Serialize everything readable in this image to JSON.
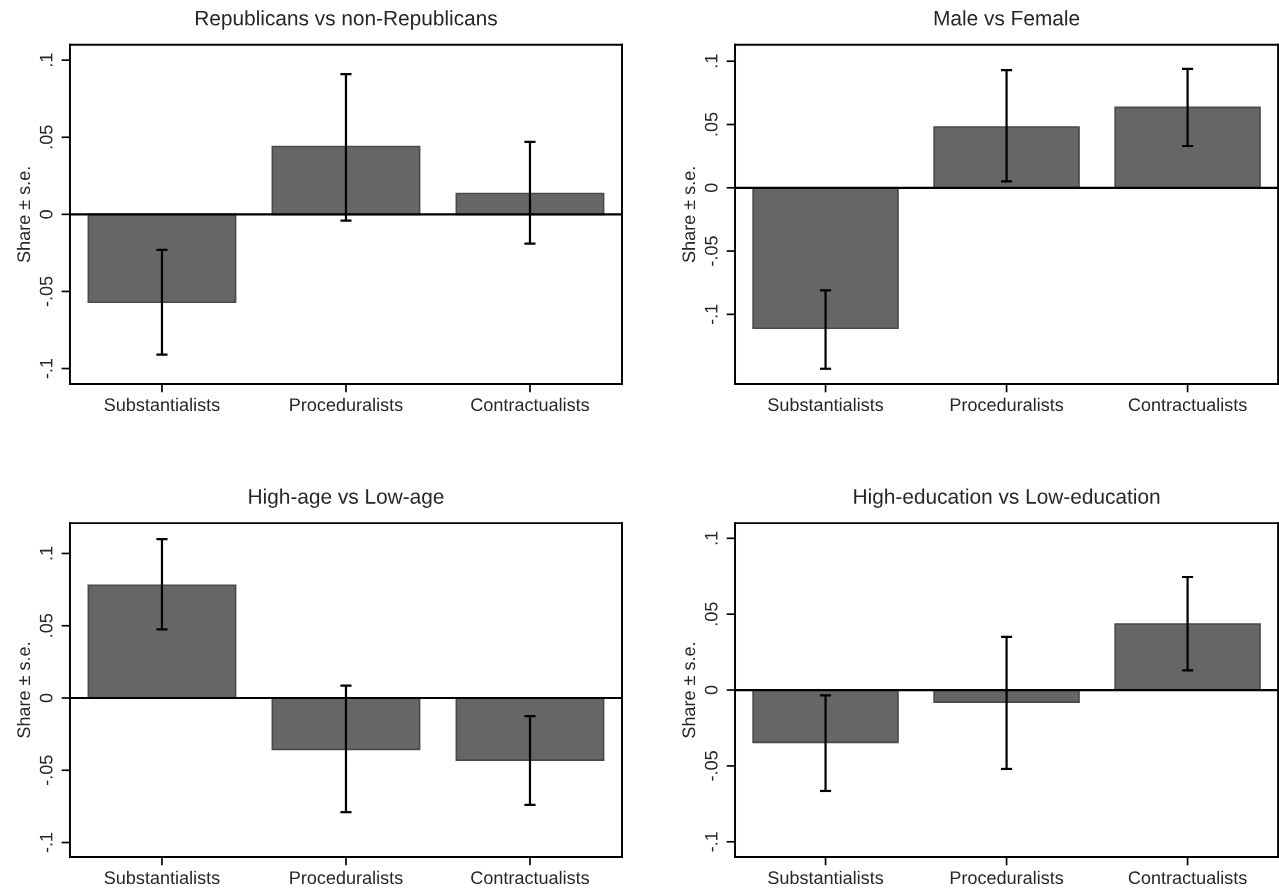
{
  "chart_data": [
    {
      "type": "bar",
      "title": "Republicans vs non-Republicans",
      "ylabel": "Share ± s.e.",
      "categories": [
        "Substantialists",
        "Proceduralists",
        "Contractualists"
      ],
      "values": [
        -0.057,
        0.044,
        0.0135
      ],
      "color": "#666666",
      "errors": [
        [
          -0.091,
          -0.023
        ],
        [
          -0.004,
          0.091
        ],
        [
          -0.019,
          0.047
        ]
      ],
      "ylim": [
        -0.11,
        0.11
      ],
      "yticks": [
        {
          "value": -0.1,
          "label": "-.1"
        },
        {
          "value": -0.05,
          "label": "-.05"
        },
        0,
        {
          "value": 0.05,
          "label": ".05"
        },
        {
          "value": 0.1,
          "label": ".1"
        }
      ],
      "ref_lines": [
        {
          "axis": "y",
          "value": 0,
          "color": "#000000"
        }
      ],
      "grid": false,
      "legend": false
    },
    {
      "type": "bar",
      "title": "Male vs Female",
      "ylabel": "Share ± s.e.",
      "categories": [
        "Substantialists",
        "Proceduralists",
        "Contractualists"
      ],
      "values": [
        -0.111,
        0.048,
        0.0635
      ],
      "color": "#666666",
      "errors": [
        [
          -0.143,
          -0.081
        ],
        [
          0.005,
          0.093
        ],
        [
          0.033,
          0.094
        ]
      ],
      "ylim": [
        -0.155,
        0.113
      ],
      "yticks": [
        {
          "value": -0.1,
          "label": "-.1"
        },
        {
          "value": -0.05,
          "label": "-.05"
        },
        0,
        {
          "value": 0.05,
          "label": ".05"
        },
        {
          "value": 0.1,
          "label": ".1"
        }
      ],
      "ref_lines": [
        {
          "axis": "y",
          "value": 0,
          "color": "#000000"
        }
      ],
      "grid": false,
      "legend": false
    },
    {
      "type": "bar",
      "title": "High-age vs Low-age",
      "ylabel": "Share ± s.e.",
      "categories": [
        "Substantialists",
        "Proceduralists",
        "Contractualists"
      ],
      "values": [
        0.078,
        -0.0355,
        -0.043
      ],
      "color": "#666666",
      "errors": [
        [
          0.0475,
          0.11
        ],
        [
          -0.079,
          0.0085
        ],
        [
          -0.074,
          -0.0125
        ]
      ],
      "ylim": [
        -0.11,
        0.121
      ],
      "yticks": [
        {
          "value": -0.1,
          "label": "-.1"
        },
        {
          "value": -0.05,
          "label": "-.05"
        },
        0,
        {
          "value": 0.05,
          "label": ".05"
        },
        {
          "value": 0.1,
          "label": ".1"
        }
      ],
      "ref_lines": [
        {
          "axis": "y",
          "value": 0,
          "color": "#000000"
        }
      ],
      "grid": false,
      "legend": false
    },
    {
      "type": "bar",
      "title": "High-education vs Low-education",
      "ylabel": "Share ± s.e.",
      "categories": [
        "Substantialists",
        "Proceduralists",
        "Contractualists"
      ],
      "values": [
        -0.0345,
        -0.008,
        0.0435
      ],
      "color": "#666666",
      "errors": [
        [
          -0.0665,
          -0.0035
        ],
        [
          -0.052,
          0.035
        ],
        [
          0.013,
          0.0745
        ]
      ],
      "ylim": [
        -0.11,
        0.11
      ],
      "yticks": [
        {
          "value": -0.1,
          "label": "-.1"
        },
        {
          "value": -0.05,
          "label": "-.05"
        },
        0,
        {
          "value": 0.05,
          "label": ".05"
        },
        {
          "value": 0.1,
          "label": ".1"
        }
      ],
      "ref_lines": [
        {
          "axis": "y",
          "value": 0,
          "color": "#000000"
        }
      ],
      "grid": false,
      "legend": false
    }
  ]
}
